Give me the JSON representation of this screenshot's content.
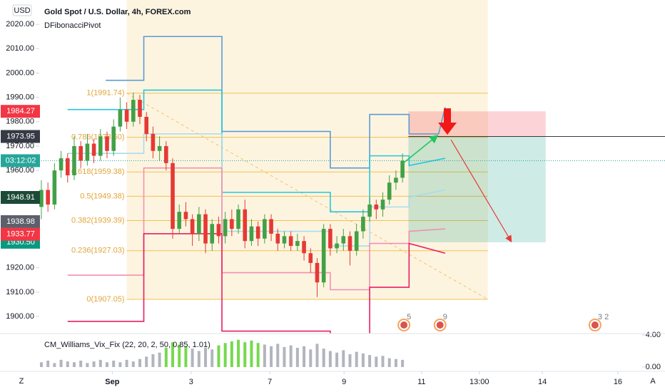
{
  "chart_data": [
    {
      "type": "candlestick",
      "title": "Gold Spot / U.S. Dollar, 4h, FOREX.com",
      "indicator": "DFibonacciPivot",
      "currency": "USD",
      "up_color": "#43a047",
      "down_color": "#e53935",
      "xlim": [
        -6.3,
        91.5
      ],
      "ylim": [
        1893,
        2030
      ],
      "xticks": [
        {
          "value": 10.8,
          "label": "Sep"
        },
        {
          "value": 22.8,
          "label": "3"
        },
        {
          "value": 34.8,
          "label": "7"
        },
        {
          "value": 46.1,
          "label": "9"
        },
        {
          "value": 57.9,
          "label": "11"
        },
        {
          "value": 66.7,
          "label": "13:00"
        },
        {
          "value": 76.3,
          "label": "14"
        },
        {
          "value": 87.8,
          "label": "16"
        }
      ],
      "yticks": [
        {
          "value": 2020,
          "label": "2020.00"
        },
        {
          "value": 2010,
          "label": "2010.00"
        },
        {
          "value": 2000,
          "label": "2000.00"
        },
        {
          "value": 1990,
          "label": "1990.00"
        },
        {
          "value": 1980,
          "label": "1980.00"
        },
        {
          "value": 1970,
          "label": "1970.00"
        },
        {
          "value": 1960,
          "label": "1960.00"
        },
        {
          "value": 1950,
          "label": "1950.00"
        },
        {
          "value": 1940,
          "label": "1940.00"
        },
        {
          "value": 1930,
          "label": "1930.00"
        },
        {
          "value": 1920,
          "label": "1920.00"
        },
        {
          "value": 1910,
          "label": "1910.00"
        },
        {
          "value": 1900,
          "label": "1900.00"
        }
      ],
      "open": [
        1945,
        1952,
        1946,
        1960,
        1965,
        1958,
        1970,
        1964,
        1971,
        1966,
        1974,
        1968,
        1978,
        1985,
        1980,
        1989,
        1982,
        1975,
        1968,
        1970,
        1963,
        1936,
        1943,
        1940,
        1934,
        1942,
        1930,
        1938,
        1933,
        1940,
        1936,
        1944,
        1931,
        1937,
        1932,
        1940,
        1934,
        1930,
        1933,
        1929,
        1931,
        1926,
        1922,
        1914,
        1936,
        1928,
        1930,
        1933,
        1927,
        1935,
        1941,
        1946,
        1944,
        1948,
        1955,
        1957
      ],
      "high": [
        1956,
        1955,
        1963,
        1968,
        1967,
        1974,
        1972,
        1975,
        1973,
        1977,
        1976,
        1981,
        1990,
        1988,
        1992,
        1991,
        1984,
        1978,
        1974,
        1972,
        1965,
        1946,
        1947,
        1942,
        1945,
        1944,
        1940,
        1941,
        1943,
        1944,
        1946,
        1948,
        1940,
        1939,
        1942,
        1942,
        1936,
        1935,
        1935,
        1934,
        1933,
        1928,
        1924,
        1938,
        1938,
        1933,
        1936,
        1935,
        1938,
        1944,
        1949,
        1948,
        1951,
        1958,
        1960,
        1967
      ],
      "low": [
        1940,
        1943,
        1944,
        1957,
        1955,
        1956,
        1961,
        1962,
        1963,
        1964,
        1965,
        1966,
        1976,
        1977,
        1978,
        1979,
        1972,
        1965,
        1964,
        1960,
        1932,
        1934,
        1937,
        1929,
        1931,
        1926,
        1927,
        1930,
        1930,
        1933,
        1934,
        1928,
        1929,
        1929,
        1930,
        1931,
        1927,
        1928,
        1927,
        1927,
        1923,
        1918,
        1908,
        1912,
        1925,
        1926,
        1927,
        1921,
        1925,
        1932,
        1939,
        1940,
        1941,
        1946,
        1952,
        1955
      ],
      "close": [
        1952,
        1946,
        1960,
        1965,
        1958,
        1970,
        1964,
        1971,
        1966,
        1974,
        1968,
        1978,
        1985,
        1980,
        1989,
        1982,
        1975,
        1968,
        1970,
        1963,
        1936,
        1943,
        1940,
        1934,
        1942,
        1930,
        1938,
        1933,
        1940,
        1936,
        1944,
        1931,
        1937,
        1932,
        1940,
        1934,
        1930,
        1933,
        1929,
        1931,
        1926,
        1922,
        1914,
        1936,
        1928,
        1930,
        1933,
        1927,
        1935,
        1941,
        1946,
        1944,
        1948,
        1955,
        1957,
        1964
      ],
      "countdown": "03:12:02",
      "price_tags": [
        {
          "value": 1948.91,
          "color": "#1d4a36"
        },
        {
          "value": 1938.98,
          "color": "#5d606b"
        },
        {
          "value": 1933.77,
          "color": "#f23645"
        }
      ],
      "position": {
        "stop": 1984.27,
        "entry": 1973.95,
        "target": {
          "value": 1930.5,
          "label": "1930.50"
        },
        "x": [
          55.9,
          76.8
        ]
      },
      "fib": {
        "x": [
          13,
          68
        ],
        "levels": [
          {
            "value": 1991.74,
            "label": "1(1991.74)"
          },
          {
            "value": 1973.6,
            "label": "0.786(1973.60)"
          },
          {
            "value": 1959.38,
            "label": "0.618(1959.38)"
          },
          {
            "value": 1949.38,
            "label": "0.5(1949.38)"
          },
          {
            "value": 1939.39,
            "label": "0.382(1939.39)"
          },
          {
            "value": 1927.03,
            "label": "0.236(1927.03)"
          },
          {
            "value": 1907.05,
            "label": "0(1907.05)"
          }
        ]
      },
      "pivot_lines": [
        {
          "color": "#5b9bd5",
          "x": [
            9.8,
            15.6,
            15.6,
            27.5,
            27.5,
            44,
            44,
            50,
            50,
            56,
            56,
            60.5,
            61.5
          ],
          "values": [
            1997,
            1997,
            2015,
            2015,
            1976,
            1976,
            1961,
            1961,
            1983,
            1983,
            1975,
            1975,
            1986
          ]
        },
        {
          "color": "#26c6da",
          "x": [
            4,
            15.6,
            15.6,
            27.5,
            27.5,
            44,
            44,
            50,
            50,
            56,
            56,
            61.5
          ],
          "values": [
            1985,
            1985,
            1993,
            1993,
            1951,
            1951,
            1943,
            1943,
            1966,
            1966,
            1962,
            1965
          ]
        },
        {
          "color": "#a8dcec",
          "x": [
            4,
            15.6,
            15.6,
            27.5,
            27.5,
            44,
            44,
            50,
            50,
            56,
            56,
            61.5
          ],
          "values": [
            1967,
            1967,
            1975,
            1975,
            1935,
            1935,
            1929,
            1929,
            1945,
            1945,
            1949,
            1952
          ]
        },
        {
          "color": "#f48fb1",
          "x": [
            4,
            15.6,
            15.6,
            27.5,
            27.5,
            44,
            44,
            50,
            50,
            56,
            56,
            61.5
          ],
          "values": [
            1917,
            1917,
            1961,
            1961,
            1918,
            1918,
            1911,
            1911,
            1930,
            1930,
            1935,
            1936
          ]
        },
        {
          "color": "#e91e63",
          "x": [
            4,
            15.6,
            15.6,
            27.5,
            27.5,
            44,
            44,
            50,
            50,
            56,
            56,
            61.5
          ],
          "values": [
            1898,
            1898,
            1934,
            1934,
            1894,
            1894,
            1890,
            1890,
            1912,
            1912,
            1930,
            1926
          ]
        }
      ],
      "events": [
        {
          "x": 55,
          "label": "5"
        },
        {
          "x": 60.5,
          "label": "9"
        },
        {
          "x": 84.1,
          "label": "3 2"
        }
      ]
    },
    {
      "type": "bar",
      "title": "CM_Williams_Vix_Fix (22, 20, 2, 50, 0.85, 1.01)",
      "ylim": [
        0,
        4
      ],
      "yticks": [
        {
          "value": 4,
          "label": "4.00"
        },
        {
          "value": 0,
          "label": "0.00"
        }
      ],
      "values": [
        0.6,
        0.8,
        0.5,
        0.9,
        0.7,
        0.6,
        0.8,
        0.5,
        0.7,
        0.9,
        0.6,
        0.8,
        0.6,
        0.9,
        0.7,
        1.0,
        1.3,
        1.6,
        1.8,
        2.4,
        3.1,
        2.8,
        2.6,
        2.3,
        2.0,
        2.4,
        2.2,
        2.7,
        3.0,
        3.2,
        3.4,
        3.1,
        3.3,
        3.0,
        2.8,
        2.6,
        2.9,
        2.5,
        2.7,
        2.4,
        2.6,
        2.2,
        2.9,
        2.3,
        2.0,
        1.8,
        2.1,
        1.6,
        1.9,
        1.7,
        1.5,
        1.3,
        1.4,
        1.1,
        1.0,
        0.9
      ],
      "colors": [
        "#b2b5be",
        "#b2b5be",
        "#b2b5be",
        "#b2b5be",
        "#b2b5be",
        "#b2b5be",
        "#b2b5be",
        "#b2b5be",
        "#b2b5be",
        "#b2b5be",
        "#b2b5be",
        "#b2b5be",
        "#b2b5be",
        "#b2b5be",
        "#b2b5be",
        "#b2b5be",
        "#b2b5be",
        "#b2b5be",
        "#b2b5be",
        "#76d94f",
        "#76d94f",
        "#76d94f",
        "#76d94f",
        "#b2b5be",
        "#b2b5be",
        "#b2b5be",
        "#b2b5be",
        "#76d94f",
        "#76d94f",
        "#76d94f",
        "#76d94f",
        "#76d94f",
        "#76d94f",
        "#76d94f",
        "#b2b5be",
        "#b2b5be",
        "#b2b5be",
        "#b2b5be",
        "#b2b5be",
        "#b2b5be",
        "#b2b5be",
        "#b2b5be",
        "#b2b5be",
        "#b2b5be",
        "#b2b5be",
        "#b2b5be",
        "#b2b5be",
        "#b2b5be",
        "#b2b5be",
        "#b2b5be",
        "#b2b5be",
        "#b2b5be",
        "#b2b5be",
        "#b2b5be",
        "#b2b5be",
        "#b2b5be"
      ]
    }
  ],
  "ui": {
    "zoom": "Z",
    "auto": "A"
  }
}
